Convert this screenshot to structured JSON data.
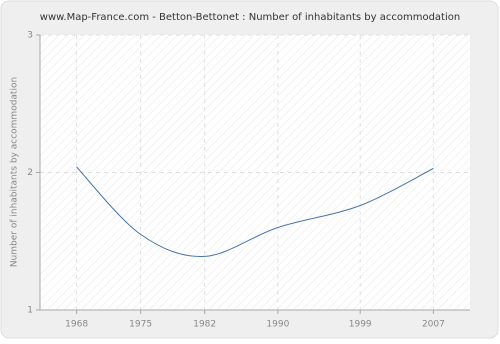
{
  "chart_data": {
    "type": "line",
    "title": "www.Map-France.com - Betton-Bettonet : Number of inhabitants by accommodation",
    "y_label": "Number of inhabitants by accommodation",
    "x": [
      1968,
      1975,
      1982,
      1990,
      1999,
      2007
    ],
    "series": [
      {
        "name": "Number of inhabitants by accommodation",
        "color": "#4a76a8",
        "values": [
          2.04,
          1.55,
          1.39,
          1.6,
          1.76,
          2.03
        ]
      }
    ],
    "xlim": [
      1964,
      2011
    ],
    "xticks": [
      1968,
      1975,
      1982,
      1990,
      1999,
      2007
    ],
    "ylim": [
      1,
      3
    ],
    "yticks": [
      1,
      2,
      3
    ],
    "grid": true
  }
}
